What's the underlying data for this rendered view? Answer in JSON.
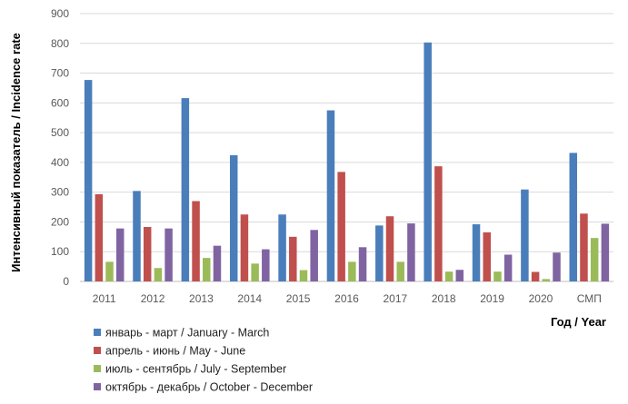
{
  "chart_data": {
    "type": "bar",
    "categories": [
      "2011",
      "2012",
      "2013",
      "2014",
      "2015",
      "2016",
      "2017",
      "2018",
      "2019",
      "2020",
      "СМП"
    ],
    "series": [
      {
        "name": "январь - март / January - March",
        "color": "#4A7EBB",
        "values": [
          677,
          304,
          616,
          424,
          225,
          575,
          188,
          803,
          192,
          309,
          432
        ]
      },
      {
        "name": "апрель - июнь / May -  June",
        "color": "#C0504D",
        "values": [
          293,
          183,
          270,
          225,
          150,
          368,
          219,
          387,
          165,
          32,
          228
        ]
      },
      {
        "name": "июль - сентябрь /  July - September",
        "color": "#9BBB59",
        "values": [
          66,
          45,
          79,
          60,
          38,
          66,
          66,
          33,
          33,
          8,
          146
        ]
      },
      {
        "name": "октябрь - декабрь /  October  - December",
        "color": "#8064A2",
        "values": [
          178,
          178,
          120,
          108,
          173,
          115,
          195,
          39,
          90,
          97,
          194
        ]
      }
    ],
    "ylim": [
      0,
      900
    ],
    "yticks": [
      0,
      100,
      200,
      300,
      400,
      500,
      600,
      700,
      800,
      900
    ],
    "grid": true,
    "xlabel": "Год / Year",
    "ylabel": "Интенсивный  показатель  / Incidence rate",
    "legend_position": "bottom-left"
  }
}
